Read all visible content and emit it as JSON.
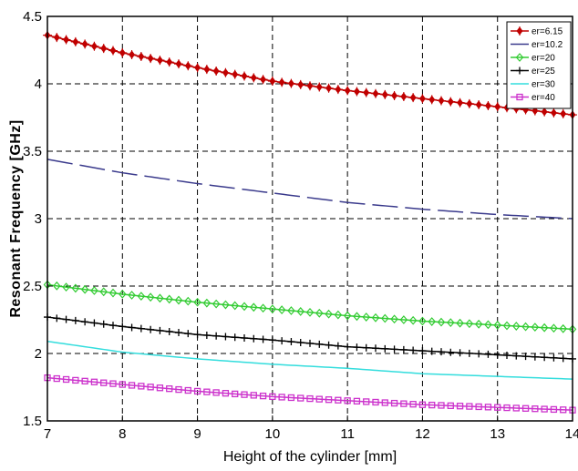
{
  "chart_data": {
    "type": "line",
    "title": "",
    "xlabel": "Height of the cylinder [mm]",
    "ylabel": "Resonant Frequency [GHz]",
    "xlim": [
      7,
      14
    ],
    "ylim": [
      1.5,
      4.5
    ],
    "x_ticks": [
      "7",
      "8",
      "9",
      "10",
      "11",
      "12",
      "13",
      "14"
    ],
    "y_ticks": [
      "1.5",
      "2",
      "2.5",
      "3",
      "3.5",
      "4",
      "4.5"
    ],
    "grid": true,
    "legend_position": "top-right",
    "x": [
      7,
      8,
      9,
      10,
      11,
      12,
      13,
      14
    ],
    "series": [
      {
        "name": "er=6.15",
        "color": "#c00000",
        "marker": "plus-diamond",
        "style": "solid",
        "values": [
          4.36,
          4.23,
          4.12,
          4.02,
          3.95,
          3.89,
          3.83,
          3.77
        ]
      },
      {
        "name": "er=10.2",
        "color": "#3a3a8c",
        "marker": "none",
        "style": "dashed",
        "values": [
          3.44,
          3.34,
          3.26,
          3.19,
          3.12,
          3.07,
          3.03,
          3.0
        ]
      },
      {
        "name": "er=20",
        "color": "#33cc33",
        "marker": "diamond",
        "style": "solid",
        "values": [
          2.51,
          2.44,
          2.38,
          2.33,
          2.28,
          2.24,
          2.21,
          2.18
        ]
      },
      {
        "name": "er=25",
        "color": "#000000",
        "marker": "plus",
        "style": "solid",
        "values": [
          2.27,
          2.2,
          2.14,
          2.1,
          2.05,
          2.02,
          1.99,
          1.96
        ]
      },
      {
        "name": "er=30",
        "color": "#33dddd",
        "marker": "none",
        "style": "solid",
        "values": [
          2.09,
          2.01,
          1.96,
          1.92,
          1.89,
          1.85,
          1.83,
          1.81
        ]
      },
      {
        "name": "er=40",
        "color": "#cc33cc",
        "marker": "square",
        "style": "solid",
        "values": [
          1.82,
          1.77,
          1.72,
          1.68,
          1.65,
          1.62,
          1.6,
          1.58
        ]
      }
    ]
  }
}
